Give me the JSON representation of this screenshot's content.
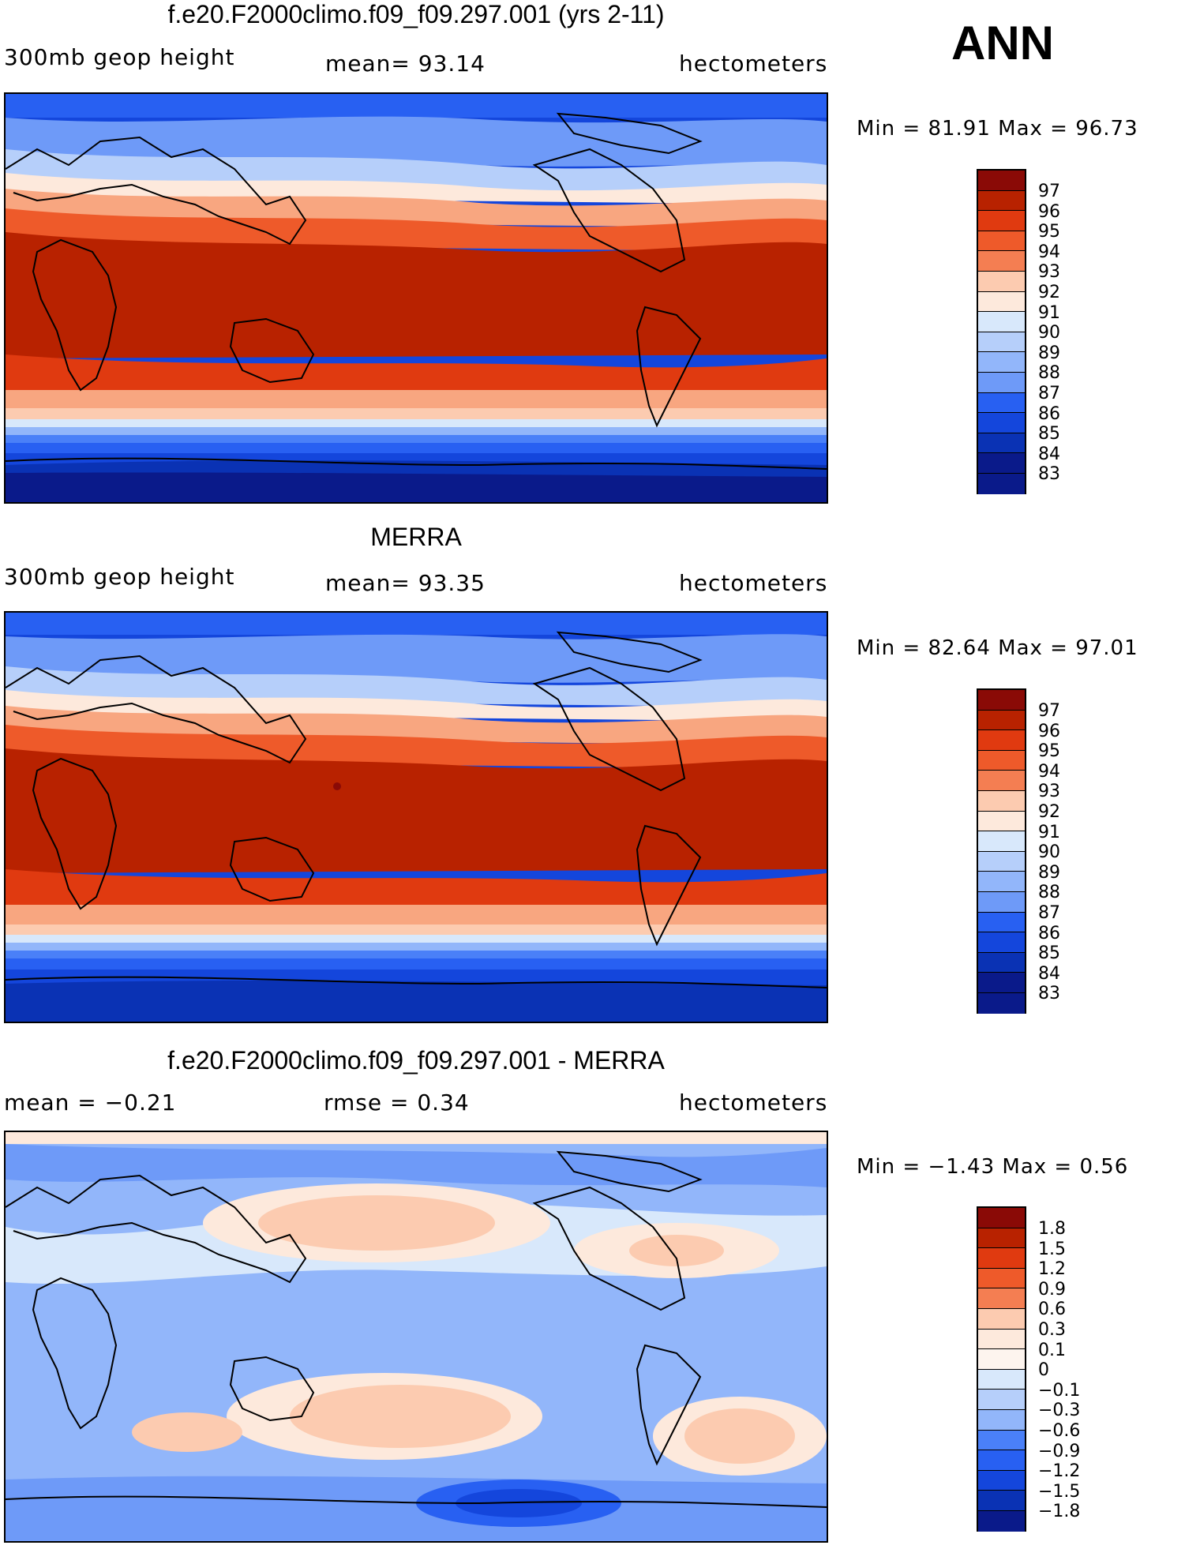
{
  "season": "ANN",
  "palette": {
    "blue_red": [
      "#0a1a8a",
      "#0a32b4",
      "#1446dc",
      "#2860f2",
      "#4a80f8",
      "#6e9af8",
      "#92b6fa",
      "#b6cffa",
      "#d8e8fb",
      "#fde9dc",
      "#fccbb0",
      "#f8a680",
      "#f47e52",
      "#ee5a2a",
      "#e03a10",
      "#b82200",
      "#8a0a06"
    ],
    "diff": [
      "#0a1a8a",
      "#0a32b4",
      "#1446dc",
      "#2860f2",
      "#4a80f8",
      "#6e9af8",
      "#92b6fa",
      "#b6cffa",
      "#d8e8fb",
      "#fde9dc",
      "#fccbb0",
      "#f8a680",
      "#f47e52",
      "#ee5a2a",
      "#e03a10",
      "#b82200",
      "#8a0a06"
    ]
  },
  "panels": [
    {
      "title": "f.e20.F2000climo.f09_f09.297.001 (yrs 2-11)",
      "left_label": "300mb geop height",
      "center_label": "mean=  93.14",
      "units": "hectometers",
      "minmax": "Min =  81.91 Max =  96.73",
      "colorbar_labels": [
        "97",
        "96",
        "95",
        "94",
        "93",
        "92",
        "91",
        "90",
        "89",
        "88",
        "87",
        "86",
        "85",
        "84",
        "83"
      ]
    },
    {
      "title": "MERRA",
      "left_label": "300mb geop height",
      "center_label": "mean=  93.35",
      "units": "hectometers",
      "minmax": "Min =  82.64 Max =  97.01",
      "colorbar_labels": [
        "97",
        "96",
        "95",
        "94",
        "93",
        "92",
        "91",
        "90",
        "89",
        "88",
        "87",
        "86",
        "85",
        "84",
        "83"
      ]
    },
    {
      "title": "f.e20.F2000climo.f09_f09.297.001 - MERRA",
      "left_label": "mean =  −0.21",
      "center_label": "rmse =   0.34",
      "units": "hectometers",
      "minmax": "Min =  −1.43 Max =   0.56",
      "colorbar_labels": [
        "1.8",
        "1.5",
        "1.2",
        "0.9",
        "0.6",
        "0.3",
        "0.1",
        "0",
        "−0.1",
        "−0.3",
        "−0.6",
        "−0.9",
        "−1.2",
        "−1.5",
        "−1.8"
      ]
    }
  ]
}
